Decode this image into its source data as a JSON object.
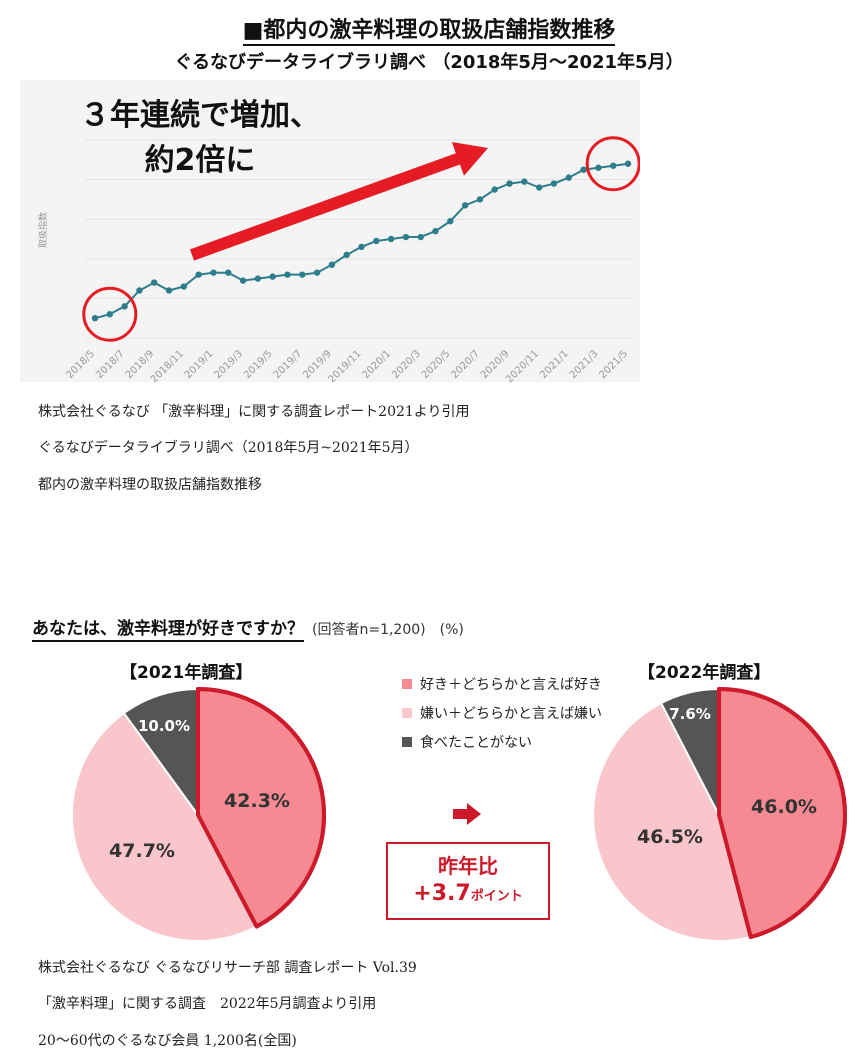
{
  "header": {
    "title": "■都内の激辛料理の取扱店舗指数推移",
    "subtitle": "ぐるなびデータライブラリ調べ （2018年5月～2021年5月）"
  },
  "chart_data": [
    {
      "type": "line",
      "ylabel": "取扱指数",
      "x": [
        "2018/5",
        "2018/6",
        "2018/7",
        "2018/8",
        "2018/9",
        "2018/10",
        "2018/11",
        "2018/12",
        "2019/1",
        "2019/2",
        "2019/3",
        "2019/4",
        "2019/5",
        "2019/6",
        "2019/7",
        "2019/8",
        "2019/9",
        "2019/10",
        "2019/11",
        "2019/12",
        "2020/1",
        "2020/2",
        "2020/3",
        "2020/4",
        "2020/5",
        "2020/6",
        "2020/7",
        "2020/8",
        "2020/9",
        "2020/10",
        "2020/11",
        "2020/12",
        "2021/1",
        "2021/2",
        "2021/3",
        "2021/4",
        "2021/5"
      ],
      "xticks": [
        "2018/5",
        "2018/7",
        "2018/9",
        "2018/11",
        "2019/1",
        "2019/3",
        "2019/5",
        "2019/7",
        "2019/9",
        "2019/11",
        "2020/1",
        "2020/3",
        "2020/5",
        "2020/7",
        "2020/9",
        "2020/11",
        "2021/1",
        "2021/3",
        "2021/5"
      ],
      "values": [
        100,
        102,
        106,
        114,
        118,
        114,
        116,
        122,
        123,
        123,
        119,
        120,
        121,
        122,
        122,
        123,
        127,
        132,
        136,
        139,
        140,
        141,
        141,
        144,
        149,
        157,
        160,
        165,
        168,
        169,
        166,
        168,
        171,
        175,
        176,
        177,
        178
      ],
      "ylim": [
        90,
        190
      ],
      "grid": true,
      "annotation": "３年連続で増加、\n約2倍に",
      "line_color": "#2e7d8c",
      "arrow_color": "#e51c23",
      "circle_color": "#e51c23"
    },
    {
      "type": "pie",
      "title": "【2021年調査】",
      "labels": [
        "好き＋どちらかと言えば好き",
        "嫌い＋どちらかと言えば嫌い",
        "食べたことがない"
      ],
      "values": [
        42.3,
        47.7,
        10.0
      ],
      "colors": [
        "#f58a93",
        "#f9c6cb",
        "#555555"
      ],
      "value_labels": [
        "42.3%",
        "47.7%",
        "10.0%"
      ]
    },
    {
      "type": "pie",
      "title": "【2022年調査】",
      "labels": [
        "好き＋どちらかと言えば好き",
        "嫌い＋どちらかと言えば嫌い",
        "食べたことがない"
      ],
      "values": [
        46.0,
        46.5,
        7.6
      ],
      "colors": [
        "#f58a93",
        "#f9c6cb",
        "#555555"
      ],
      "value_labels": [
        "46.0%",
        "46.5%",
        "7.6%"
      ]
    }
  ],
  "captions1": [
    "株式会社ぐるなび 「激辛料理」に関する調査レポート2021より引用",
    "ぐるなびデータライブラリ調べ（2018年5月~2021年5月）",
    "都内の激辛料理の取扱店舗指数推移"
  ],
  "survey": {
    "question": "あなたは、激辛料理が好きですか？",
    "note": "(回答者n=1,200)　(%)",
    "legend": [
      "好き＋どちらかと言えば好き",
      "嫌い＋どちらかと言えば嫌い",
      "食べたことがない"
    ],
    "legend_colors": [
      "#f58a93",
      "#f9c6cb",
      "#555555"
    ],
    "yoy_label": "昨年比",
    "yoy_value": "+3.7",
    "yoy_unit": "ポイント",
    "accent": "#cc1a2b"
  },
  "captions2": [
    "株式会社ぐるなび ぐるなびリサーチ部 調査レポート Vol.39",
    "「激辛料理」に関する調査　2022年5月調査より引用",
    "20～60代のぐるなび会員 1,200名(全国)"
  ]
}
